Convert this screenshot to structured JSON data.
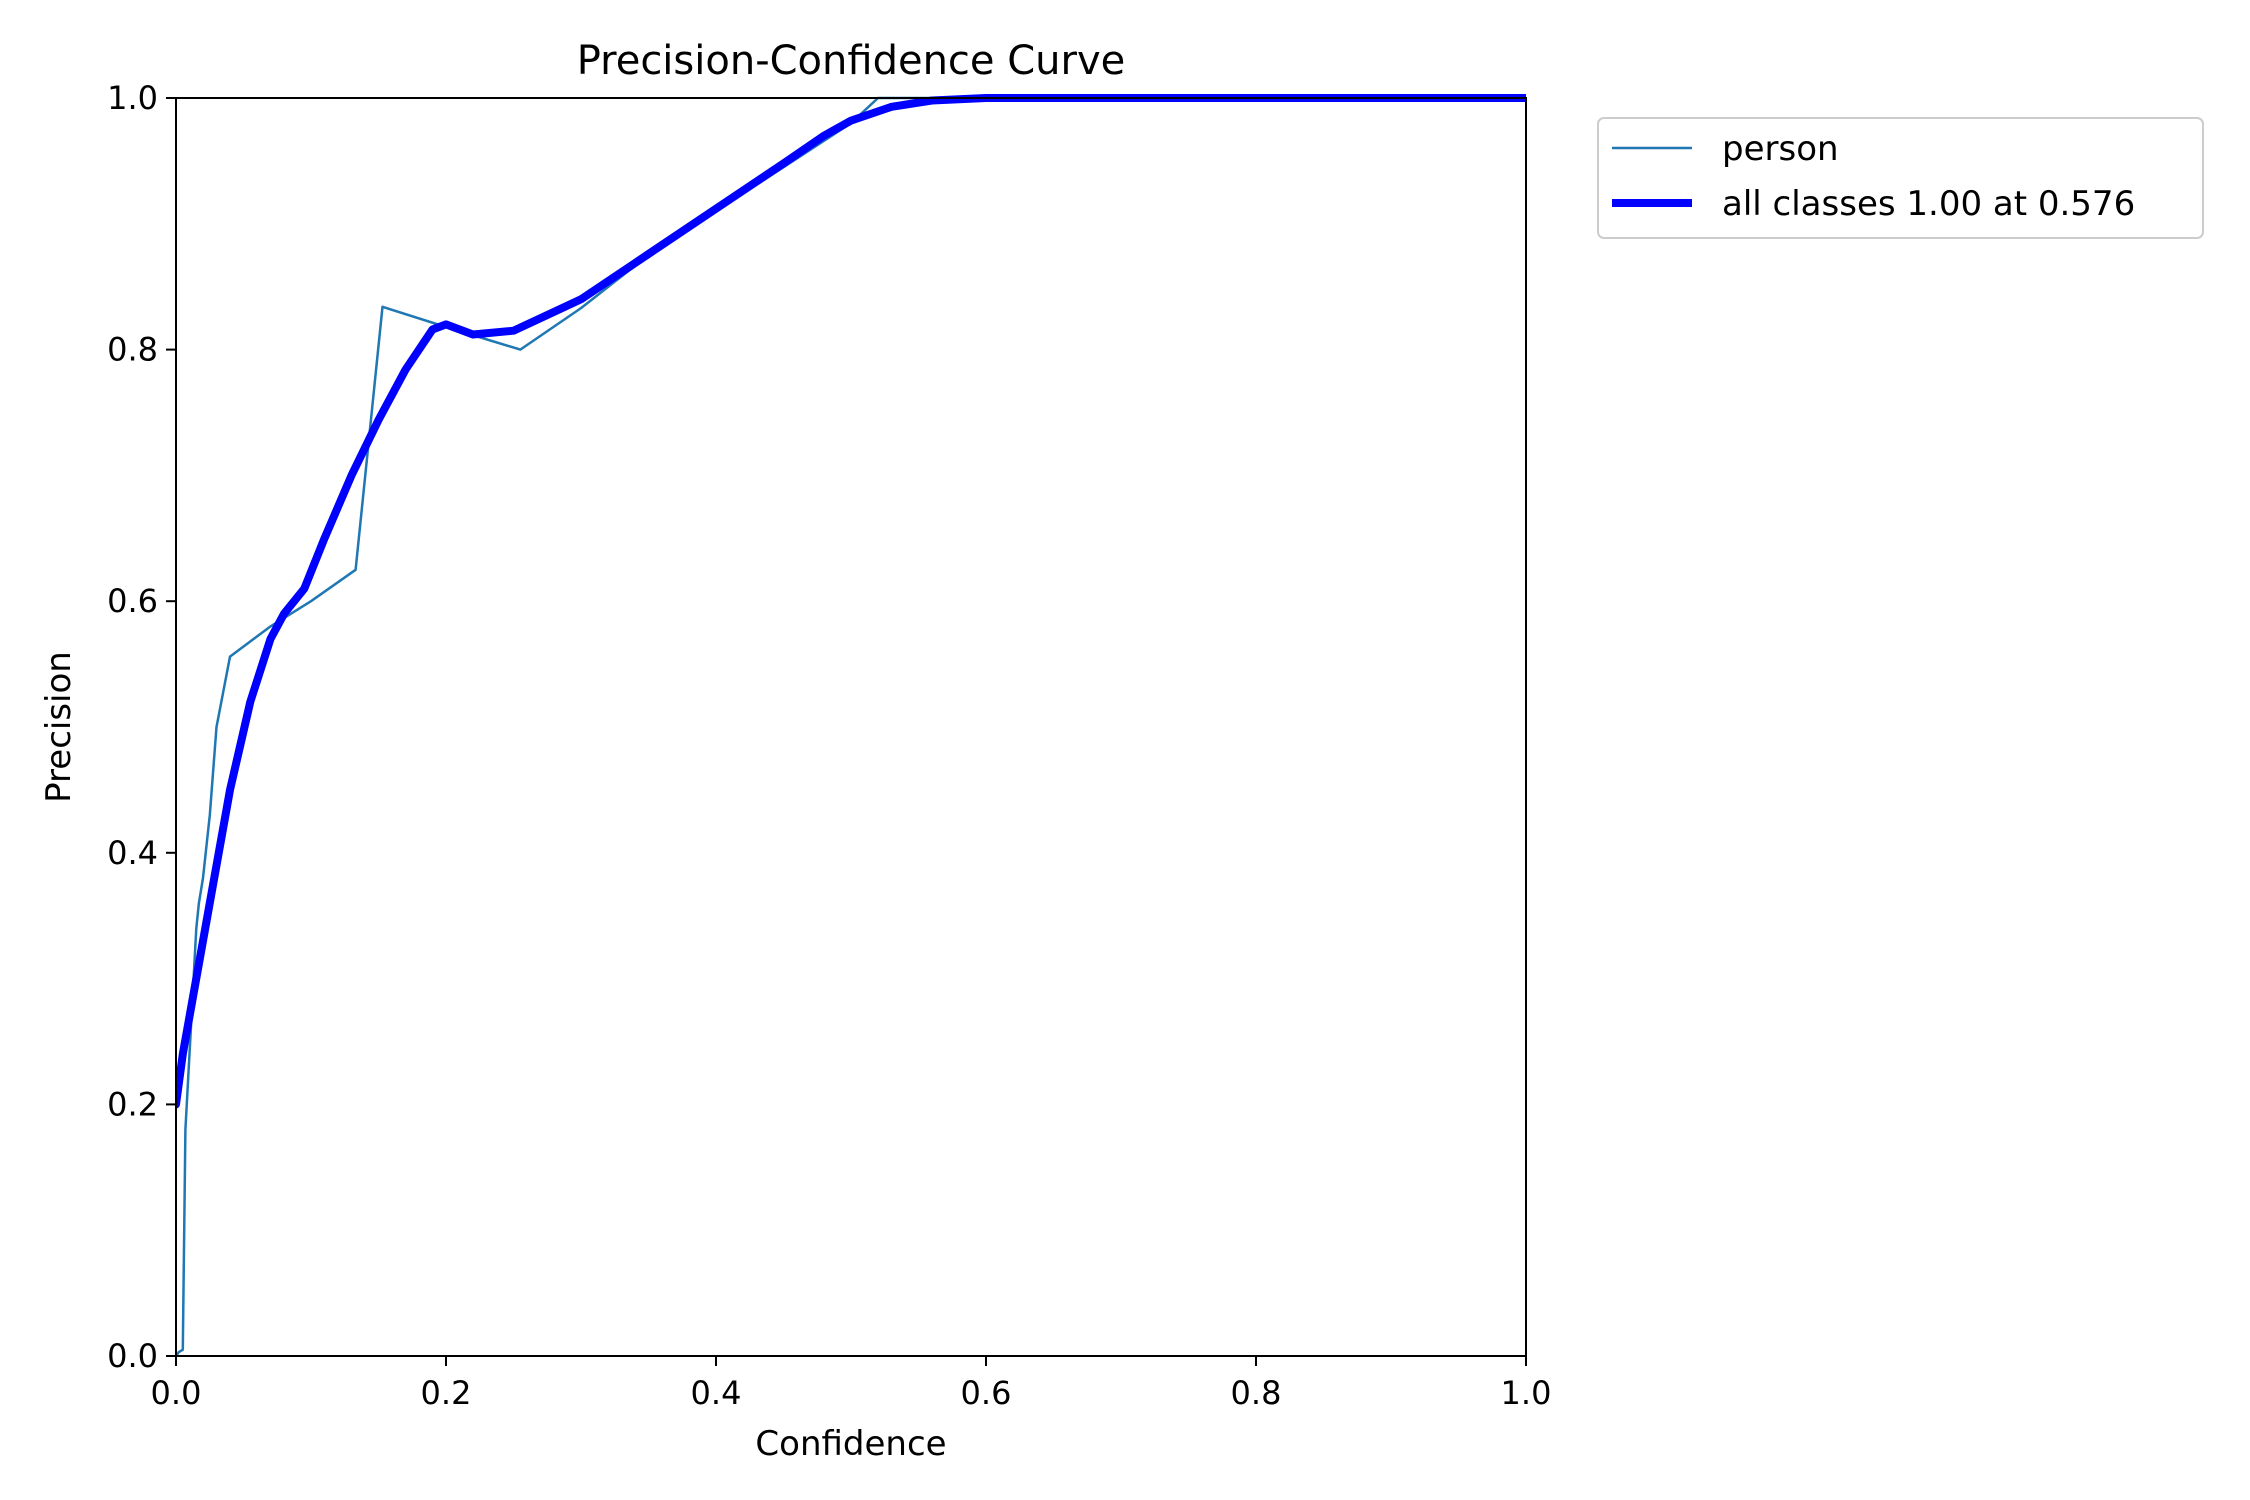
{
  "chart_data": {
    "type": "line",
    "title": "Precision-Confidence Curve",
    "xlabel": "Confidence",
    "ylabel": "Precision",
    "xlim": [
      0,
      1
    ],
    "ylim": [
      0,
      1
    ],
    "x_ticks": [
      "0.0",
      "0.2",
      "0.4",
      "0.6",
      "0.8",
      "1.0"
    ],
    "y_ticks": [
      "0.0",
      "0.2",
      "0.4",
      "0.6",
      "0.8",
      "1.0"
    ],
    "grid": false,
    "legend_placement": "outside top-right",
    "series": [
      {
        "name": "person",
        "color": "#1f77b4",
        "x": [
          0.0,
          0.002,
          0.005,
          0.007,
          0.015,
          0.017,
          0.02,
          0.025,
          0.03,
          0.04,
          0.07,
          0.1,
          0.133,
          0.153,
          0.2,
          0.255,
          0.3,
          0.35,
          0.4,
          0.45,
          0.5,
          0.52,
          0.56,
          0.6,
          0.8,
          1.0
        ],
        "y": [
          0.0,
          0.003,
          0.005,
          0.18,
          0.34,
          0.36,
          0.38,
          0.43,
          0.5,
          0.556,
          0.58,
          0.6,
          0.625,
          0.834,
          0.818,
          0.8,
          0.833,
          0.875,
          0.91,
          0.945,
          0.98,
          1.0,
          1.0,
          1.0,
          1.0,
          1.0
        ]
      },
      {
        "name": "all classes 1.00 at 0.576",
        "color": "#0000ff",
        "x": [
          0.0,
          0.005,
          0.02,
          0.04,
          0.055,
          0.07,
          0.08,
          0.095,
          0.11,
          0.13,
          0.15,
          0.17,
          0.19,
          0.2,
          0.22,
          0.25,
          0.28,
          0.3,
          0.35,
          0.4,
          0.45,
          0.48,
          0.5,
          0.53,
          0.56,
          0.6,
          0.7,
          0.8,
          0.9,
          1.0
        ],
        "y": [
          0.2,
          0.24,
          0.33,
          0.45,
          0.52,
          0.57,
          0.59,
          0.61,
          0.65,
          0.7,
          0.744,
          0.784,
          0.816,
          0.82,
          0.812,
          0.815,
          0.83,
          0.84,
          0.876,
          0.912,
          0.948,
          0.97,
          0.982,
          0.993,
          0.998,
          1.0,
          1.0,
          1.0,
          1.0,
          1.0
        ]
      }
    ]
  }
}
